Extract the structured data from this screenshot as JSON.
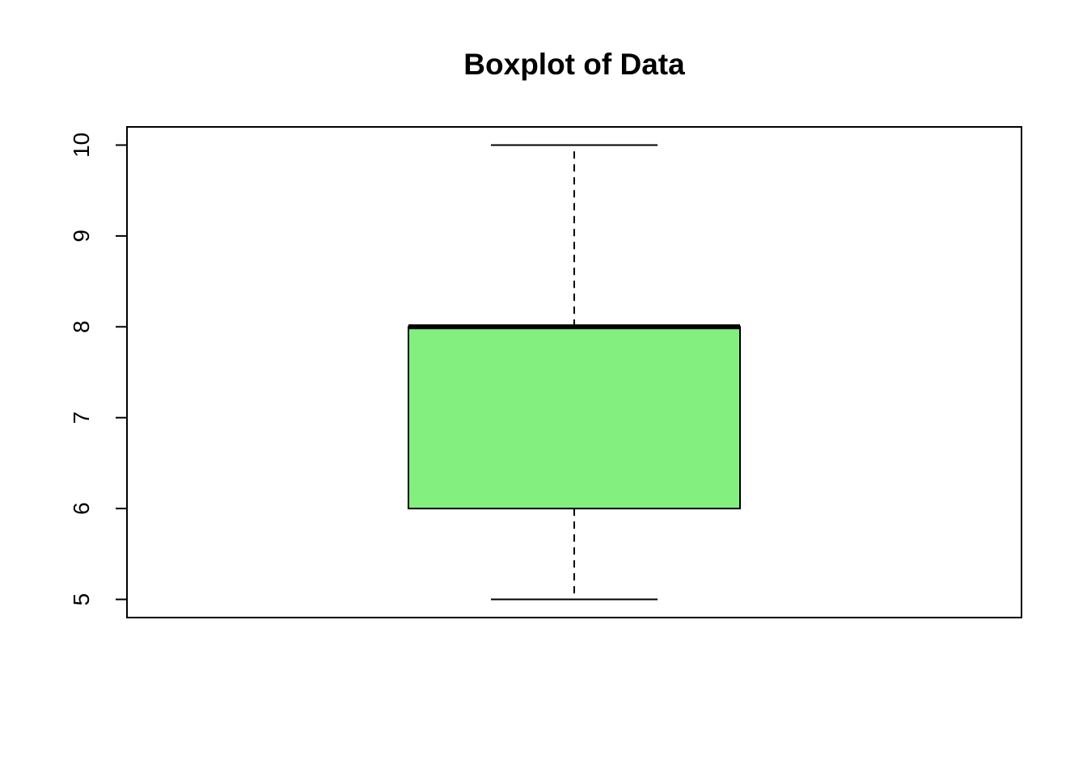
{
  "chart_data": {
    "type": "boxplot",
    "title": "Boxplot of Data",
    "xlabel": "",
    "ylabel": "",
    "ylim": [
      4.8,
      10.2
    ],
    "yticks": [
      5,
      6,
      7,
      8,
      9,
      10
    ],
    "ytick_labels": [
      "5",
      "6",
      "7",
      "8",
      "9",
      "10"
    ],
    "box": {
      "min": 5,
      "q1": 6,
      "median": 8,
      "q3": 8,
      "max": 10
    },
    "box_fill_color": "#83EF7F",
    "line_color": "#000000",
    "grid": false,
    "legend": "none"
  }
}
